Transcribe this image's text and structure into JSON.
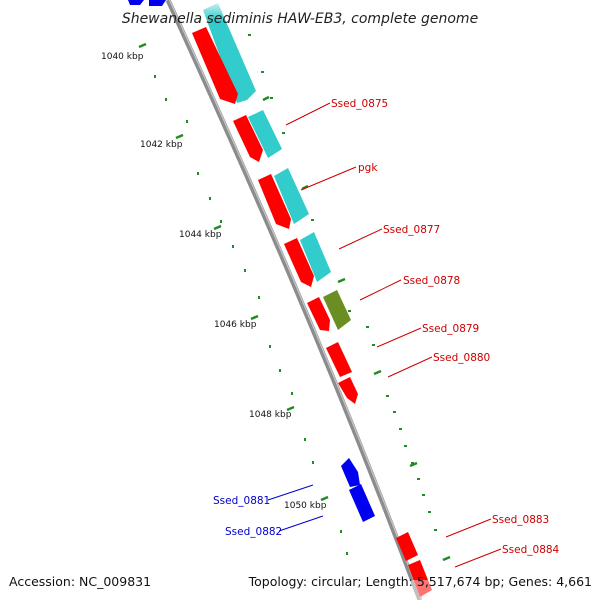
{
  "title": "Shewanella sediminis HAW-EB3, complete genome",
  "footer": {
    "accession": "Accession: NC_009831",
    "summary": "Topology: circular; Length: 5,517,674 bp; Genes: 4,661"
  },
  "colors": {
    "forward_cds": "#ff0000",
    "forward_rna": "#33cccc",
    "reverse_cds": "#0000ee",
    "other": "#6b8e23",
    "backbone": "#8c8c8c",
    "tick": "#228b22",
    "label_forward": "#cc0000",
    "label_reverse": "#0000cc"
  },
  "kbp_marks": [
    "1040 kbp",
    "1042 kbp",
    "1044 kbp",
    "1046 kbp",
    "1048 kbp",
    "1050 kbp"
  ],
  "genes_forward": [
    "Ssed_0875",
    "pgk",
    "Ssed_0877",
    "Ssed_0878",
    "Ssed_0879",
    "Ssed_0880",
    "Ssed_0883",
    "Ssed_0884"
  ],
  "genes_reverse": [
    "Ssed_0881",
    "Ssed_0882"
  ]
}
